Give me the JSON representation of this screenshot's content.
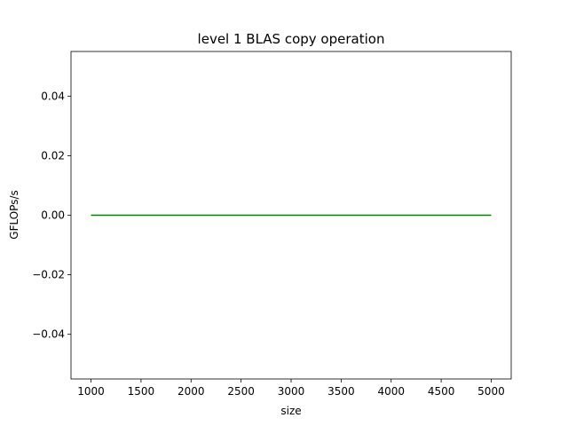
{
  "chart_data": {
    "type": "line",
    "title": "level 1 BLAS copy operation",
    "xlabel": "size",
    "ylabel": "GFLOPs/s",
    "xlim": [
      800,
      5200
    ],
    "ylim": [
      -0.055,
      0.055
    ],
    "xticks": [
      1000,
      1500,
      2000,
      2500,
      3000,
      3500,
      4000,
      4500,
      5000
    ],
    "yticks": [
      -0.04,
      -0.02,
      0.0,
      0.02,
      0.04
    ],
    "ytick_labels": [
      "−0.04",
      "−0.02",
      "0.00",
      "0.02",
      "0.04"
    ],
    "grid": false,
    "series": [
      {
        "color": "#008000",
        "x": [
          1000,
          5000
        ],
        "y": [
          0.0,
          0.0
        ]
      }
    ]
  }
}
